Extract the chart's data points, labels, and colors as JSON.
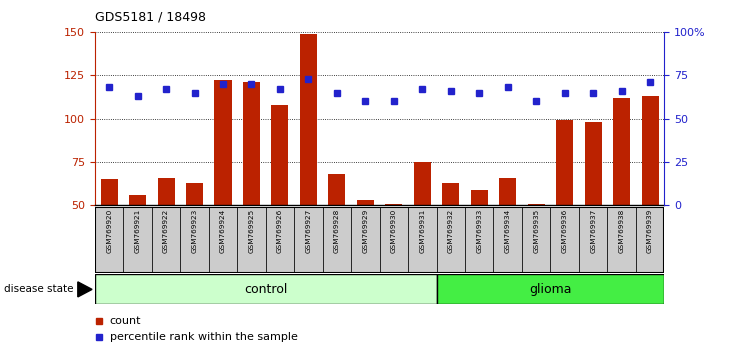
{
  "title": "GDS5181 / 18498",
  "samples": [
    "GSM769920",
    "GSM769921",
    "GSM769922",
    "GSM769923",
    "GSM769924",
    "GSM769925",
    "GSM769926",
    "GSM769927",
    "GSM769928",
    "GSM769929",
    "GSM769930",
    "GSM769931",
    "GSM769932",
    "GSM769933",
    "GSM769934",
    "GSM769935",
    "GSM769936",
    "GSM769937",
    "GSM769938",
    "GSM769939"
  ],
  "counts": [
    65,
    56,
    66,
    63,
    122,
    121,
    108,
    149,
    68,
    53,
    51,
    75,
    63,
    59,
    66,
    51,
    99,
    98,
    112,
    113
  ],
  "percentile_ranks": [
    68,
    63,
    67,
    65,
    70,
    70,
    67,
    73,
    65,
    60,
    60,
    67,
    66,
    65,
    68,
    60,
    65,
    65,
    66,
    71
  ],
  "control_count": 12,
  "glioma_count": 8,
  "ylim_left": [
    50,
    150
  ],
  "ylim_right": [
    0,
    100
  ],
  "yticks_left": [
    50,
    75,
    100,
    125,
    150
  ],
  "yticks_right": [
    0,
    25,
    50,
    75,
    100
  ],
  "ytick_right_labels": [
    "0",
    "25",
    "50",
    "75",
    "100%"
  ],
  "bar_color": "#bb2200",
  "marker_color": "#2222cc",
  "control_color": "#ccffcc",
  "glioma_color": "#44ee44",
  "label_bg_color": "#cccccc",
  "grid_color": "#000000",
  "legend_count_label": "count",
  "legend_pct_label": "percentile rank within the sample",
  "disease_state_label": "disease state",
  "control_label": "control",
  "glioma_label": "glioma"
}
